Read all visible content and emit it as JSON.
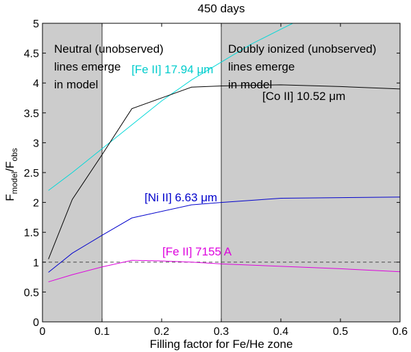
{
  "chart_data": {
    "type": "line",
    "title": "450 days",
    "xlabel": "Filling factor for Fe/He zone",
    "ylabel_main": "F",
    "ylabel_sub1": "model",
    "ylabel_mid": "/F",
    "ylabel_sub2": "obs",
    "xlim": [
      0,
      0.6
    ],
    "ylim": [
      0,
      5
    ],
    "xticks": [
      0,
      0.1,
      0.2,
      0.3,
      0.4,
      0.5,
      0.6
    ],
    "xtick_labels": [
      "0",
      "0.1",
      "0.2",
      "0.3",
      "0.4",
      "0.5",
      "0.6"
    ],
    "yticks": [
      0,
      0.5,
      1,
      1.5,
      2,
      2.5,
      3,
      3.5,
      4,
      4.5,
      5
    ],
    "ytick_labels": [
      "0",
      "0.5",
      "1",
      "1.5",
      "2",
      "2.5",
      "3",
      "3.5",
      "4",
      "4.5",
      "5"
    ],
    "shaded_regions": [
      {
        "x0": 0,
        "x1": 0.1,
        "color": "#cccccc"
      },
      {
        "x0": 0.3,
        "x1": 0.6,
        "color": "#cccccc"
      }
    ],
    "reference_line": {
      "y": 1,
      "style": "dashed",
      "color": "#333333"
    },
    "series": [
      {
        "name": "[Fe II] 17.94 μm",
        "color": "#00d8d8",
        "x": [
          0.01,
          0.05,
          0.1,
          0.15,
          0.2,
          0.25,
          0.3,
          0.35,
          0.4,
          0.42
        ],
        "y": [
          2.2,
          2.5,
          2.9,
          3.3,
          3.7,
          4.05,
          4.35,
          4.65,
          4.9,
          5.0
        ]
      },
      {
        "name": "[Co II] 10.52 μm",
        "color": "#000000",
        "x": [
          0.01,
          0.05,
          0.1,
          0.15,
          0.25,
          0.3,
          0.4,
          0.5,
          0.6
        ],
        "y": [
          1.05,
          2.05,
          2.8,
          3.57,
          3.93,
          3.95,
          3.97,
          3.94,
          3.9
        ]
      },
      {
        "name": "[Ni II] 6.63 μm",
        "color": "#0000cc",
        "x": [
          0.01,
          0.05,
          0.1,
          0.15,
          0.25,
          0.3,
          0.4,
          0.5,
          0.6
        ],
        "y": [
          0.83,
          1.15,
          1.45,
          1.74,
          1.96,
          2.0,
          2.07,
          2.08,
          2.09
        ]
      },
      {
        "name": "[Fe II] 7155 A",
        "color": "#dd00dd",
        "x": [
          0.01,
          0.05,
          0.1,
          0.15,
          0.2,
          0.25,
          0.3,
          0.4,
          0.5,
          0.6
        ],
        "y": [
          0.67,
          0.79,
          0.92,
          1.03,
          1.02,
          1.0,
          0.97,
          0.93,
          0.89,
          0.84
        ]
      }
    ],
    "annotations": {
      "neutral_line1": "Neutral (unobserved)",
      "neutral_line2": "lines emerge",
      "neutral_line3": "in model",
      "doubly_line1": "Doubly ionized (unobserved)",
      "doubly_line2": "lines emerge",
      "doubly_line3": "in model",
      "fe17": "[Fe II] 17.94 μm",
      "co": "[Co II] 10.52 μm",
      "ni": "[Ni II] 6.63 μm",
      "fe7155": "[Fe II] 7155 A"
    }
  }
}
